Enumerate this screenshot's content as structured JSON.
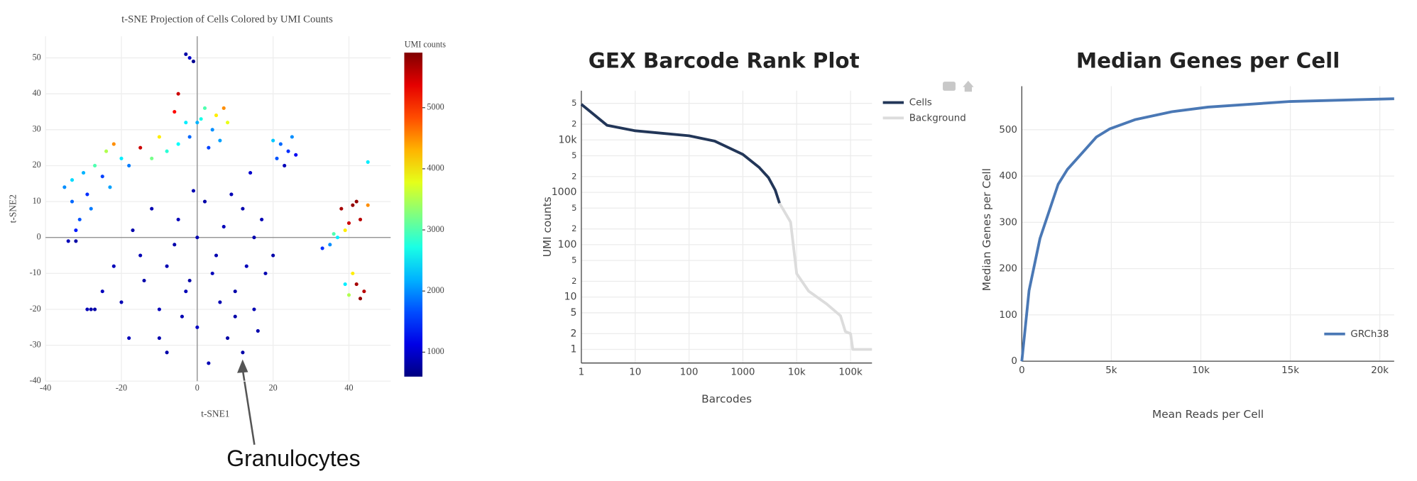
{
  "chart_data": [
    {
      "type": "scatter",
      "title": "t-SNE Projection of Cells Colored by UMI Counts",
      "x_label": "t-SNE1",
      "y_label": "t-SNE2",
      "annotation": "Granulocytes",
      "xlim": [
        -40,
        51
      ],
      "ylim": [
        -40,
        56
      ],
      "xticks": [
        -40,
        -20,
        0,
        20,
        40
      ],
      "yticks": [
        -40,
        -30,
        -20,
        -10,
        0,
        10,
        20,
        30,
        40,
        50
      ],
      "grid": true,
      "colorbar": {
        "title": "UMI counts",
        "colorscale": "jet",
        "lim": [
          600,
          5900
        ],
        "ticks": [
          1000,
          2000,
          3000,
          4000,
          5000
        ]
      },
      "x": [
        -2,
        5,
        -10,
        10,
        -15,
        0,
        8,
        -20,
        15,
        -5,
        2,
        -12,
        12,
        -22,
        -8,
        3,
        18,
        -18,
        6,
        -6,
        10,
        -25,
        15,
        -3,
        0,
        7,
        -14,
        17,
        -10,
        12,
        -1,
        -17,
        4,
        -8,
        20,
        9,
        -28,
        13,
        -4,
        16,
        -35,
        -33,
        -30,
        -27,
        -24,
        -22,
        -20,
        -25,
        -31,
        -28,
        -33,
        -15,
        -12,
        -8,
        -10,
        -5,
        -23,
        -18,
        -29,
        -32,
        -34,
        -32,
        0,
        2,
        5,
        7,
        4,
        -2,
        6,
        3,
        -3,
        8,
        1,
        -6,
        -3,
        -2,
        -1,
        22,
        25,
        24,
        21,
        26,
        23,
        20,
        38,
        41,
        43,
        40,
        45,
        39,
        37,
        35,
        33,
        36,
        42,
        42,
        44,
        41,
        39,
        43,
        40,
        14,
        45,
        -27,
        -29,
        -5
      ],
      "values": [
        -12,
        -5,
        -20,
        -15,
        -5,
        -25,
        -28,
        -18,
        0,
        5,
        10,
        8,
        8,
        -8,
        -32,
        -35,
        -10,
        -28,
        -18,
        -2,
        -22,
        -15,
        -20,
        -15,
        0,
        3,
        -12,
        5,
        -28,
        -32,
        13,
        2,
        -10,
        -8,
        -5,
        12,
        -20,
        -8,
        -22,
        -26,
        14,
        10,
        18,
        20,
        24,
        26,
        22,
        17,
        5,
        8,
        16,
        25,
        22,
        24,
        28,
        26,
        14,
        20,
        12,
        2,
        -1,
        -1,
        32,
        36,
        34,
        36,
        30,
        28,
        27,
        25,
        32,
        32,
        33,
        35,
        51,
        50,
        49,
        26,
        28,
        24,
        22,
        23,
        20,
        27,
        8,
        9,
        5,
        4,
        9,
        2,
        0,
        -2,
        -3,
        1,
        10,
        -13,
        -15,
        -10,
        -13,
        -17,
        -16,
        18,
        21,
        -20,
        -20,
        40
      ],
      "color_values": [
        800,
        850,
        900,
        820,
        880,
        950,
        800,
        870,
        830,
        900,
        810,
        860,
        840,
        900,
        820,
        880,
        850,
        900,
        870,
        830,
        810,
        920,
        860,
        890,
        850,
        900,
        820,
        880,
        840,
        810,
        870,
        830,
        900,
        860,
        820,
        880,
        820,
        900,
        860,
        830,
        2000,
        1800,
        2200,
        3000,
        3500,
        4500,
        2500,
        1600,
        1700,
        1900,
        2400,
        5500,
        3200,
        2800,
        4000,
        2600,
        2100,
        1900,
        1500,
        1400,
        900,
        800,
        2200,
        3000,
        4000,
        4500,
        2000,
        1800,
        2100,
        1600,
        2500,
        3800,
        2700,
        5200,
        800,
        1000,
        700,
        1800,
        2000,
        1500,
        1700,
        1200,
        900,
        2300,
        5700,
        5800,
        5600,
        5500,
        4500,
        4000,
        2500,
        2000,
        1500,
        3000,
        5800,
        5700,
        5600,
        4000,
        2500,
        5800,
        3500,
        1000,
        2500,
        800,
        900,
        5500
      ]
    },
    {
      "type": "line",
      "title": "GEX Barcode Rank Plot",
      "x_label": "Barcodes",
      "y_label": "UMI counts",
      "xscale": "log",
      "yscale": "log",
      "xlim": [
        1,
        250000
      ],
      "ylim": [
        0.55,
        87000
      ],
      "grid": true,
      "legend": "right",
      "xticks": [
        1,
        10,
        100,
        1000,
        {
          "value": 10000,
          "label": "10k"
        },
        {
          "value": 100000,
          "label": "100k"
        }
      ],
      "yticks": [
        1,
        2,
        5,
        10,
        {
          "value": 20,
          "label": "2"
        },
        {
          "value": 50,
          "label": "5"
        },
        100,
        {
          "value": 200,
          "label": "2"
        },
        {
          "value": 500,
          "label": "5"
        },
        1000,
        {
          "value": 2000,
          "label": "2"
        },
        {
          "value": 5000,
          "label": "5"
        },
        {
          "value": 10000,
          "label": "10k"
        },
        {
          "value": 20000,
          "label": "2"
        },
        {
          "value": 50000,
          "label": "5"
        }
      ],
      "series": [
        {
          "name": "Cells",
          "color": "#223658",
          "x": [
            1,
            3,
            10,
            30,
            100,
            300,
            1000,
            2000,
            3000,
            4000,
            4800
          ],
          "values": [
            48000,
            19000,
            15000,
            13500,
            12000,
            9500,
            5300,
            3000,
            1900,
            1100,
            620
          ]
        },
        {
          "name": "Background",
          "color": "#dcdcdc",
          "x": [
            4800,
            7700,
            9000,
            10000,
            16600,
            36000,
            65000,
            80000,
            100000,
            110000,
            250000
          ],
          "values": [
            620,
            270,
            70,
            28,
            13,
            7.4,
            4.4,
            2.2,
            2,
            1,
            1
          ]
        }
      ]
    },
    {
      "type": "line",
      "title": "Median Genes per Cell",
      "x_label": "Mean Reads per Cell",
      "y_label": "Median Genes per Cell",
      "xlim": [
        0,
        20800
      ],
      "ylim": [
        0,
        594
      ],
      "grid": true,
      "legend": "lower right",
      "xticks": [
        0,
        {
          "value": 5000,
          "label": "5k"
        },
        {
          "value": 10000,
          "label": "10k"
        },
        {
          "value": 15000,
          "label": "15k"
        },
        {
          "value": 20000,
          "label": "20k"
        }
      ],
      "yticks": [
        0,
        100,
        200,
        300,
        400,
        500
      ],
      "series": [
        {
          "name": "GRCh38",
          "color": "#4a78b5",
          "x": [
            0,
            406,
            1015,
            2030,
            2540,
            4160,
            4920,
            6350,
            8380,
            10400,
            15000,
            20800
          ],
          "values": [
            0,
            153,
            265,
            382,
            414,
            484,
            502,
            522,
            539,
            549,
            561,
            567
          ]
        }
      ]
    }
  ]
}
